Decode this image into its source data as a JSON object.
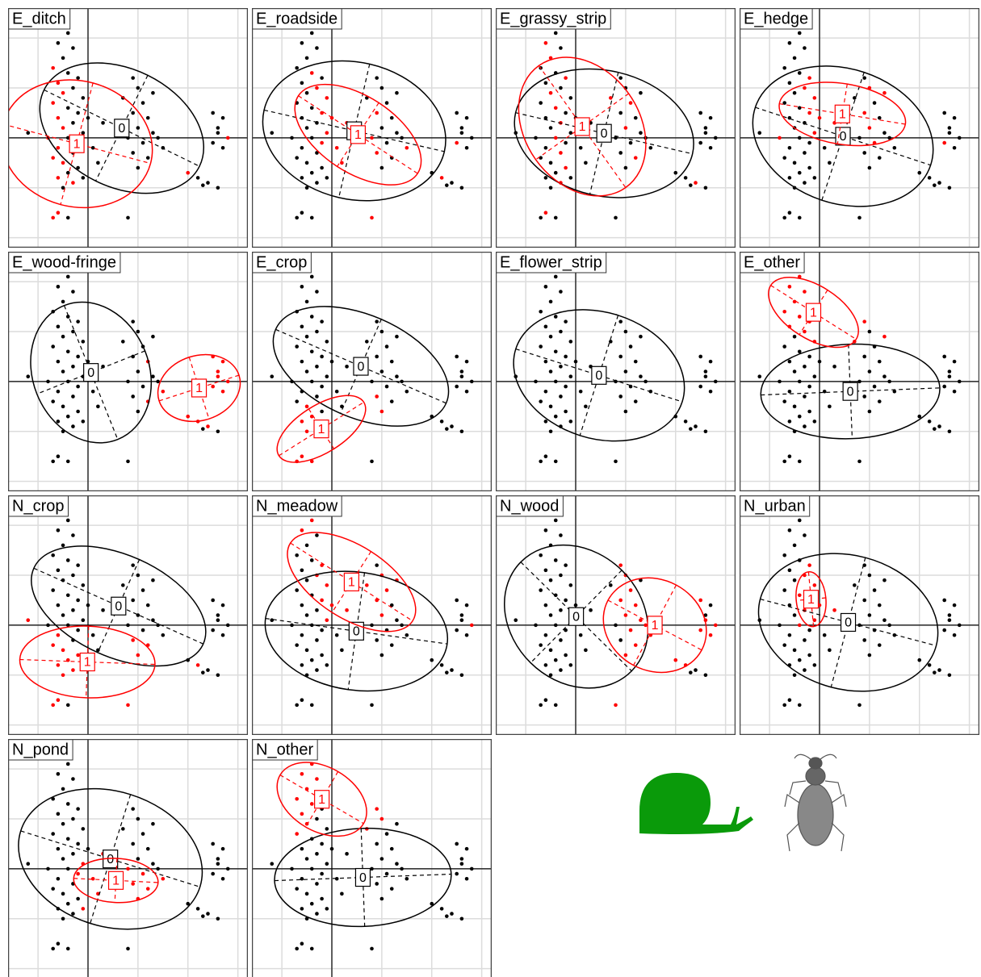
{
  "points": {
    "x": [
      -0.5,
      -0.4,
      -0.6,
      -0.3,
      -0.5,
      -0.7,
      -0.4,
      -0.2,
      -0.6,
      -0.3,
      -0.5,
      -0.1,
      -0.7,
      -0.4,
      -0.2,
      -0.6,
      0.0,
      -0.3,
      -0.5,
      -0.1,
      -0.8,
      -0.4,
      -0.2,
      -0.6,
      -0.3,
      0.1,
      -0.7,
      -0.5,
      -0.2,
      -0.4,
      -0.6,
      -0.1,
      -0.3,
      -0.5,
      -1.2,
      0.3,
      0.2,
      -0.6,
      -0.4,
      -0.7,
      0.8,
      0.9,
      1.0,
      1.1,
      0.9,
      1.2,
      1.0,
      1.3,
      0.8,
      1.1,
      1.4,
      0.9,
      1.2,
      1.0,
      1.5,
      0.7,
      1.3,
      2.5,
      2.7,
      2.6,
      2.8,
      2.5,
      2.7,
      2.6,
      2.0,
      2.2,
      2.4,
      2.6,
      2.3
    ],
    "y": [
      2.3,
      2.1,
      1.9,
      1.8,
      1.6,
      1.4,
      1.3,
      1.2,
      1.1,
      1.0,
      0.9,
      0.8,
      0.7,
      0.6,
      0.5,
      0.4,
      0.4,
      0.3,
      0.2,
      0.1,
      0.0,
      0.0,
      -0.1,
      -0.2,
      -0.3,
      -0.2,
      -0.4,
      -0.5,
      -0.6,
      -0.7,
      -0.8,
      -0.8,
      -0.9,
      -1.0,
      0.1,
      0.3,
      -0.5,
      -1.5,
      -1.6,
      -1.6,
      -1.6,
      1.2,
      1.0,
      0.7,
      0.5,
      0.4,
      0.2,
      0.1,
      0.0,
      -0.1,
      0.0,
      -0.3,
      -0.4,
      -0.6,
      -0.2,
      0.8,
      0.9,
      0.5,
      0.4,
      0.1,
      0.0,
      -0.1,
      -0.2,
      0.2,
      -0.7,
      -0.8,
      -0.9,
      -1.0,
      -0.95
    ]
  },
  "class_labels": [
    "0",
    "1"
  ],
  "colors": [
    "#000000",
    "#ff0000"
  ],
  "xlim": [
    -1.6,
    3.2
  ],
  "ylim": [
    -2.2,
    2.6
  ],
  "xticks": [
    -1,
    0,
    1,
    2,
    3
  ],
  "yticks": [
    -2,
    -1,
    0,
    1,
    2
  ],
  "grid": true,
  "chart_data": [
    {
      "type": "scatter",
      "title": "E_ditch",
      "class1": [
        5,
        8,
        10,
        12,
        15,
        18,
        20,
        23,
        26,
        27,
        30,
        32,
        37,
        39,
        60,
        64
      ]
    },
    {
      "type": "scatter",
      "title": "E_roadside",
      "class1": [
        6,
        9,
        11,
        14,
        16,
        19,
        22,
        25,
        35,
        36,
        44,
        48,
        51,
        54,
        61,
        65,
        40
      ]
    },
    {
      "type": "scatter",
      "title": "E_grassy_strip",
      "class1": [
        2,
        4,
        7,
        10,
        13,
        17,
        21,
        24,
        28,
        32,
        37,
        43,
        46,
        52,
        55,
        66
      ]
    },
    {
      "type": "scatter",
      "title": "E_hedge",
      "class1": [
        7,
        9,
        11,
        14,
        16,
        19,
        35,
        42,
        44,
        46,
        49,
        56,
        20,
        61
      ]
    },
    {
      "type": "scatter",
      "title": "E_wood-fringe",
      "class1": [
        57,
        58,
        59,
        60,
        61,
        62,
        63,
        65,
        66,
        45,
        52,
        54,
        64
      ]
    },
    {
      "type": "scatter",
      "title": "E_crop",
      "class1": [
        29,
        30,
        32,
        33,
        37,
        38,
        39,
        27,
        51,
        53
      ]
    },
    {
      "type": "scatter",
      "title": "E_flower_strip",
      "class1": []
    },
    {
      "type": "scatter",
      "title": "E_other",
      "class1": [
        0,
        1,
        2,
        3,
        4,
        5,
        6,
        7,
        8,
        9,
        11,
        41,
        55,
        56
      ]
    },
    {
      "type": "scatter",
      "title": "N_crop",
      "class1": [
        23,
        26,
        27,
        28,
        29,
        30,
        32,
        33,
        37,
        39,
        51,
        52,
        53,
        34,
        40,
        65
      ]
    },
    {
      "type": "scatter",
      "title": "N_meadow",
      "class1": [
        0,
        1,
        2,
        7,
        9,
        11,
        14,
        16,
        19,
        35,
        42,
        43,
        44,
        46,
        55,
        56,
        60
      ]
    },
    {
      "type": "scatter",
      "title": "N_wood",
      "class1": [
        41,
        42,
        43,
        44,
        45,
        46,
        47,
        49,
        50,
        52,
        54,
        57,
        59,
        60,
        61,
        62,
        64,
        65,
        40,
        53
      ]
    },
    {
      "type": "scatter",
      "title": "N_urban",
      "class1": [
        7,
        9,
        11,
        14,
        16,
        17,
        19,
        21,
        35,
        13
      ]
    },
    {
      "type": "scatter",
      "title": "N_pond",
      "class1": [
        19,
        22,
        25,
        35,
        36,
        48,
        49,
        51,
        52,
        53,
        54,
        31
      ]
    },
    {
      "type": "scatter",
      "title": "N_other",
      "class1": [
        0,
        1,
        2,
        3,
        4,
        5,
        6,
        8,
        10,
        12,
        41,
        55,
        42
      ]
    }
  ]
}
